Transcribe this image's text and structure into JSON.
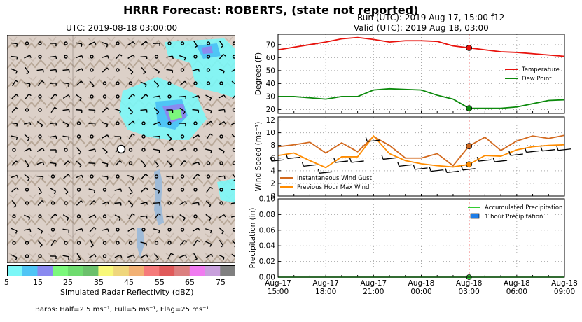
{
  "header": {
    "title": "HRRR Forecast: ROBERTS, (state not reported)",
    "run": "Run (UTC): 2019 Aug 17, 15:00 f12",
    "valid": "Valid (UTC): 2019 Aug 18, 03:00"
  },
  "map": {
    "title": "UTC: 2019-08-18 03:00:00",
    "colorbar_label": "Simulated Radar Reflectivity (dBZ)",
    "colorbar_ticks": [
      "5",
      "15",
      "25",
      "35",
      "45",
      "55",
      "65",
      "75"
    ],
    "colorbar_colors": [
      "#7bf7f7",
      "#4fc5f5",
      "#8a8af0",
      "#7cf87c",
      "#6fdc6f",
      "#6bc06b",
      "#f8f87a",
      "#efd67c",
      "#f2b174",
      "#f57a7a",
      "#e05a5a",
      "#dc8080",
      "#f07bf0",
      "#c8a0dc",
      "#808080"
    ],
    "barbs_note": "Barbs: Half=2.5 ms⁻¹, Full=5 ms⁻¹, Flag=25 ms⁻¹"
  },
  "chart_data": [
    {
      "type": "line",
      "x": [
        "Aug-17 15:00",
        "Aug-17 16:00",
        "Aug-17 17:00",
        "Aug-17 18:00",
        "Aug-17 19:00",
        "Aug-17 20:00",
        "Aug-17 21:00",
        "Aug-17 22:00",
        "Aug-17 23:00",
        "Aug-18 00:00",
        "Aug-18 01:00",
        "Aug-18 02:00",
        "Aug-18 03:00",
        "Aug-18 04:00",
        "Aug-18 05:00",
        "Aug-18 06:00",
        "Aug-18 07:00",
        "Aug-18 08:00",
        "Aug-18 09:00"
      ],
      "series": [
        {
          "name": "Temperature",
          "color": "#e8120c",
          "values": [
            66,
            68,
            70,
            72,
            74.5,
            75.5,
            74,
            72,
            73,
            73,
            72.5,
            69,
            67.5,
            66,
            64.5,
            64,
            63,
            62,
            61
          ]
        },
        {
          "name": "Dew Point",
          "color": "#0c8a0c",
          "values": [
            30,
            30,
            29,
            28,
            30,
            30,
            35,
            36,
            35.5,
            35,
            31,
            28,
            21,
            21,
            21,
            22,
            24.5,
            27,
            27.5
          ]
        }
      ],
      "highlight_x": "Aug-18 03:00",
      "ylabel": "Degrees (F)",
      "ylim": [
        17,
        78
      ],
      "yticks": [
        "20",
        "30",
        "40",
        "50",
        "60",
        "70"
      ],
      "legend": "right"
    },
    {
      "type": "line",
      "x": [
        "Aug-17 15:00",
        "Aug-17 16:00",
        "Aug-17 17:00",
        "Aug-17 18:00",
        "Aug-17 19:00",
        "Aug-17 20:00",
        "Aug-17 21:00",
        "Aug-17 22:00",
        "Aug-17 23:00",
        "Aug-18 00:00",
        "Aug-18 01:00",
        "Aug-18 02:00",
        "Aug-18 03:00",
        "Aug-18 04:00",
        "Aug-18 05:00",
        "Aug-18 06:00",
        "Aug-18 07:00",
        "Aug-18 08:00",
        "Aug-18 09:00"
      ],
      "series": [
        {
          "name": "Instantaneous Wind Gust",
          "color": "#d2691e",
          "values": [
            7.8,
            8.1,
            8.5,
            6.8,
            8.4,
            7.0,
            9.4,
            8.0,
            6.0,
            6.0,
            6.7,
            4.8,
            7.9,
            9.3,
            7.2,
            8.7,
            9.5,
            9.1,
            9.6
          ]
        },
        {
          "name": "Previous Hour Max Wind",
          "color": "#ff8c00",
          "values": [
            6.4,
            6.8,
            5.6,
            4.5,
            6.2,
            6.2,
            9.5,
            6.7,
            5.6,
            5.1,
            4.8,
            4.6,
            5.0,
            6.4,
            6.3,
            7.3,
            7.8,
            8.0,
            8.1
          ]
        }
      ],
      "highlight_x": "Aug-18 03:00",
      "ylabel": "Wind Speed (ms⁻¹)",
      "ylim": [
        0,
        12.5
      ],
      "yticks": [
        "0",
        "2",
        "4",
        "6",
        "8",
        "10",
        "12"
      ],
      "legend": "bottom-left"
    },
    {
      "type": "bar",
      "x": [
        "Aug-17 15:00",
        "Aug-17 16:00",
        "Aug-17 17:00",
        "Aug-17 18:00",
        "Aug-17 19:00",
        "Aug-17 20:00",
        "Aug-17 21:00",
        "Aug-17 22:00",
        "Aug-17 23:00",
        "Aug-18 00:00",
        "Aug-18 01:00",
        "Aug-18 02:00",
        "Aug-18 03:00",
        "Aug-18 04:00",
        "Aug-18 05:00",
        "Aug-18 06:00",
        "Aug-18 07:00",
        "Aug-18 08:00",
        "Aug-18 09:00"
      ],
      "series": [
        {
          "name": "Accumulated Precipitation",
          "color": "#32cd32",
          "values": [
            0,
            0,
            0,
            0,
            0,
            0,
            0,
            0,
            0,
            0,
            0,
            0,
            0,
            0,
            0,
            0,
            0,
            0,
            0
          ]
        },
        {
          "name": "1 hour Precipitation",
          "color": "#1e7ee8",
          "values": [
            0,
            0,
            0,
            0,
            0,
            0,
            0,
            0,
            0,
            0,
            0,
            0,
            0,
            0,
            0,
            0,
            0,
            0,
            0
          ]
        }
      ],
      "highlight_x": "Aug-18 03:00",
      "ylabel": "Precipitation (in)",
      "ylim": [
        0,
        0.1
      ],
      "yticks": [
        "0.00",
        "0.02",
        "0.04",
        "0.06",
        "0.08",
        "0.10"
      ],
      "xtick_labels": [
        [
          "Aug-17",
          "15:00"
        ],
        [
          "Aug-17",
          "18:00"
        ],
        [
          "Aug-17",
          "21:00"
        ],
        [
          "Aug-18",
          "00:00"
        ],
        [
          "Aug-18",
          "03:00"
        ],
        [
          "Aug-18",
          "06:00"
        ],
        [
          "Aug-18",
          "09:00"
        ]
      ],
      "legend": "top-right"
    }
  ]
}
